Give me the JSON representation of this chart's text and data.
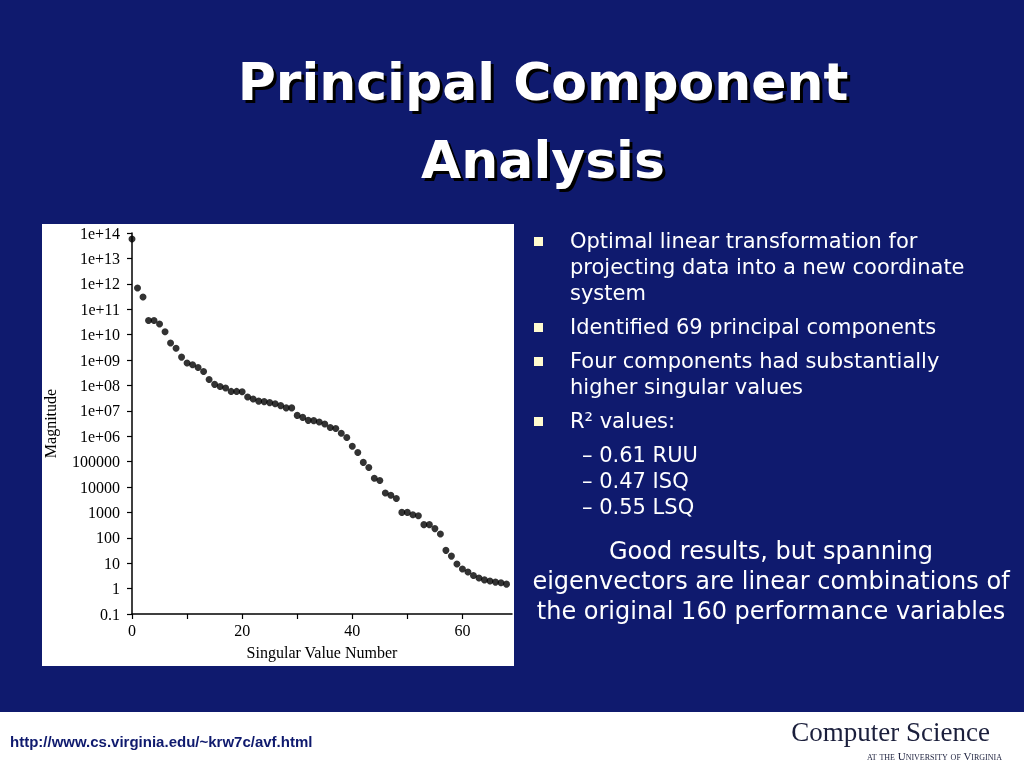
{
  "chart_data": {
    "type": "scatter",
    "title": "Principal Component Analysis",
    "xlabel": "Singular Value Number",
    "ylabel": "Magnitude",
    "annotations": [
      "Optimal linear transformation for projecting data into a new coordinate system",
      "Identified 69 principal components",
      "Four components had substantially higher singular values",
      "R² values:",
      "– 0.61 RUU",
      "– 0.47 ISQ",
      "– 0.55 LSQ",
      "Good results, but spanning eigenvectors are linear combinations of the original 160 performance variables",
      "http://www.cs.virginia.edu/~krw7c/avf.html",
      "Computer Science",
      "at the University of Virginia"
    ],
    "x": [
      0,
      1,
      2,
      3,
      4,
      5,
      6,
      7,
      8,
      9,
      10,
      11,
      12,
      13,
      14,
      15,
      16,
      17,
      18,
      19,
      20,
      21,
      22,
      23,
      24,
      25,
      26,
      27,
      28,
      29,
      30,
      31,
      32,
      33,
      34,
      35,
      36,
      37,
      38,
      39,
      40,
      41,
      42,
      43,
      44,
      45,
      46,
      47,
      48,
      49,
      50,
      51,
      52,
      53,
      54,
      55,
      56,
      57,
      58,
      59,
      60,
      61,
      62,
      63,
      64,
      65,
      66,
      67,
      68
    ],
    "values": [
      58000000000000.0,
      680000000000.0,
      300000000000.0,
      36000000000.0,
      36000000000.0,
      26000000000.0,
      13000000000.0,
      4700000000.0,
      2900000000.0,
      1300000000.0,
      760000000.0,
      650000000.0,
      510000000.0,
      350000000.0,
      170000000.0,
      110000000.0,
      91000000.0,
      79000000.0,
      58000000.0,
      58000000.0,
      56000000.0,
      35000000.0,
      29000000.0,
      24000000.0,
      23000000.0,
      21000000.0,
      19000000.0,
      16000000.0,
      13000000.0,
      13000000.0,
      6600000.0,
      5500000.0,
      4200000.0,
      4100000.0,
      3600000.0,
      3000000.0,
      2200000.0,
      2000000.0,
      1300000.0,
      890000.0,
      400000.0,
      230000.0,
      93000.0,
      59000.0,
      22000.0,
      18000.0,
      5800,
      4700,
      3500,
      1000,
      1000,
      810,
      740,
      330,
      330,
      230,
      140,
      32,
      19,
      9.3,
      5.9,
      4.5,
      3.3,
      2.6,
      2.2,
      2.0,
      1.8,
      1.7,
      1.5
    ],
    "color": "#000000",
    "marker": "circle",
    "log": "y",
    "xlim": [
      0,
      69
    ],
    "xticks": [
      0,
      {
        "value": 10,
        "label": null
      },
      20,
      {
        "value": 30,
        "label": null
      },
      40,
      {
        "value": 50,
        "label": null
      },
      60
    ],
    "ylim": [
      0.1,
      100000000000000
    ],
    "yticks": [
      0.1,
      1,
      10,
      100,
      1000,
      10000,
      100000,
      {
        "value": 1000000,
        "label": "1e+06"
      },
      {
        "value": 10000000,
        "label": "1e+07"
      },
      {
        "value": 100000000,
        "label": "1e+08"
      },
      {
        "value": 1000000000,
        "label": "1e+09"
      },
      {
        "value": 10000000000,
        "label": "1e+10"
      },
      {
        "value": 100000000000,
        "label": "1e+11"
      },
      {
        "value": 1000000000000,
        "label": "1e+12"
      },
      {
        "value": 10000000000000,
        "label": "1e+13"
      },
      {
        "value": 100000000000000,
        "label": "1e+14"
      }
    ]
  }
}
